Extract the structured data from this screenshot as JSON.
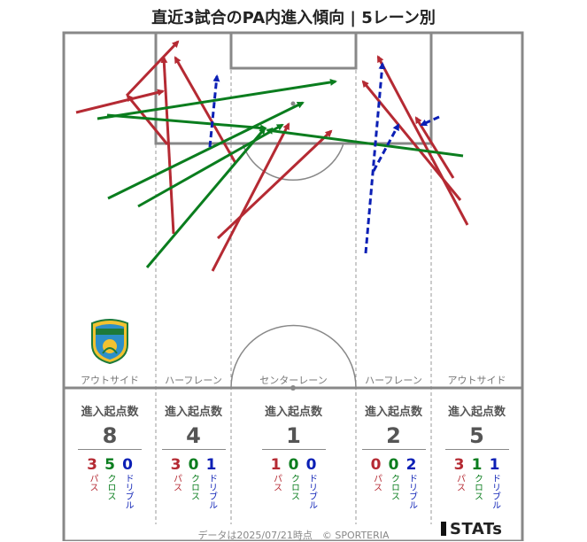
{
  "title": "直近3試合のPA内進入傾向 | 5レーン別",
  "chart_data": {
    "type": "arrow-map",
    "lanes": [
      {
        "label": "アウトサイド",
        "total": 8,
        "pass": 3,
        "cross": 5,
        "dribble": 0
      },
      {
        "label": "ハーフレーン",
        "total": 4,
        "pass": 3,
        "cross": 0,
        "dribble": 1
      },
      {
        "label": "センターレーン",
        "total": 1,
        "pass": 1,
        "cross": 0,
        "dribble": 0
      },
      {
        "label": "ハーフレーン",
        "total": 2,
        "pass": 0,
        "cross": 0,
        "dribble": 2
      },
      {
        "label": "アウトサイド",
        "total": 5,
        "pass": 3,
        "cross": 1,
        "dribble": 1
      }
    ],
    "stat_heading": "進入起点数",
    "type_labels": {
      "pass": "パス",
      "cross": "クロス",
      "dribble": "ドリブル"
    },
    "colors": {
      "pass": "#b52a33",
      "cross": "#0a7d1e",
      "dribble": "#0b1fb5",
      "lines": "#888888"
    },
    "entries": [
      {
        "type": "pass",
        "x1": 86,
        "y1": 127,
        "x2": 184,
        "y2": 103
      },
      {
        "type": "pass",
        "x1": 143,
        "y1": 108,
        "x2": 201,
        "y2": 47
      },
      {
        "type": "pass",
        "x1": 196,
        "y1": 264,
        "x2": 185,
        "y2": 65
      },
      {
        "type": "pass",
        "x1": 266,
        "y1": 184,
        "x2": 198,
        "y2": 65
      },
      {
        "type": "pass",
        "x1": 246,
        "y1": 269,
        "x2": 374,
        "y2": 148
      },
      {
        "type": "pass",
        "x1": 240,
        "y1": 306,
        "x2": 326,
        "y2": 140
      },
      {
        "type": "pass",
        "x1": 189,
        "y1": 163,
        "x2": 144,
        "y2": 108
      },
      {
        "type": "pass",
        "x1": 528,
        "y1": 254,
        "x2": 427,
        "y2": 64
      },
      {
        "type": "pass",
        "x1": 520,
        "y1": 226,
        "x2": 410,
        "y2": 92
      },
      {
        "type": "pass",
        "x1": 512,
        "y1": 201,
        "x2": 470,
        "y2": 133
      },
      {
        "type": "cross",
        "x1": 110,
        "y1": 134,
        "x2": 379,
        "y2": 92
      },
      {
        "type": "cross",
        "x1": 122,
        "y1": 224,
        "x2": 342,
        "y2": 116
      },
      {
        "type": "cross",
        "x1": 156,
        "y1": 233,
        "x2": 319,
        "y2": 141
      },
      {
        "type": "cross",
        "x1": 166,
        "y1": 302,
        "x2": 299,
        "y2": 145
      },
      {
        "type": "cross",
        "x1": 121,
        "y1": 130,
        "x2": 300,
        "y2": 145
      },
      {
        "type": "cross",
        "x1": 523,
        "y1": 176,
        "x2": 302,
        "y2": 147
      },
      {
        "type": "dribble",
        "x1": 237,
        "y1": 166,
        "x2": 245,
        "y2": 86
      },
      {
        "type": "dribble",
        "x1": 413,
        "y1": 286,
        "x2": 432,
        "y2": 72
      },
      {
        "type": "dribble",
        "x1": 422,
        "y1": 193,
        "x2": 450,
        "y2": 141
      },
      {
        "type": "dribble",
        "x1": 496,
        "y1": 132,
        "x2": 476,
        "y2": 141
      }
    ]
  },
  "footer": "データは2025/07/21時点　© SPORTERIA",
  "brand": "STATs"
}
